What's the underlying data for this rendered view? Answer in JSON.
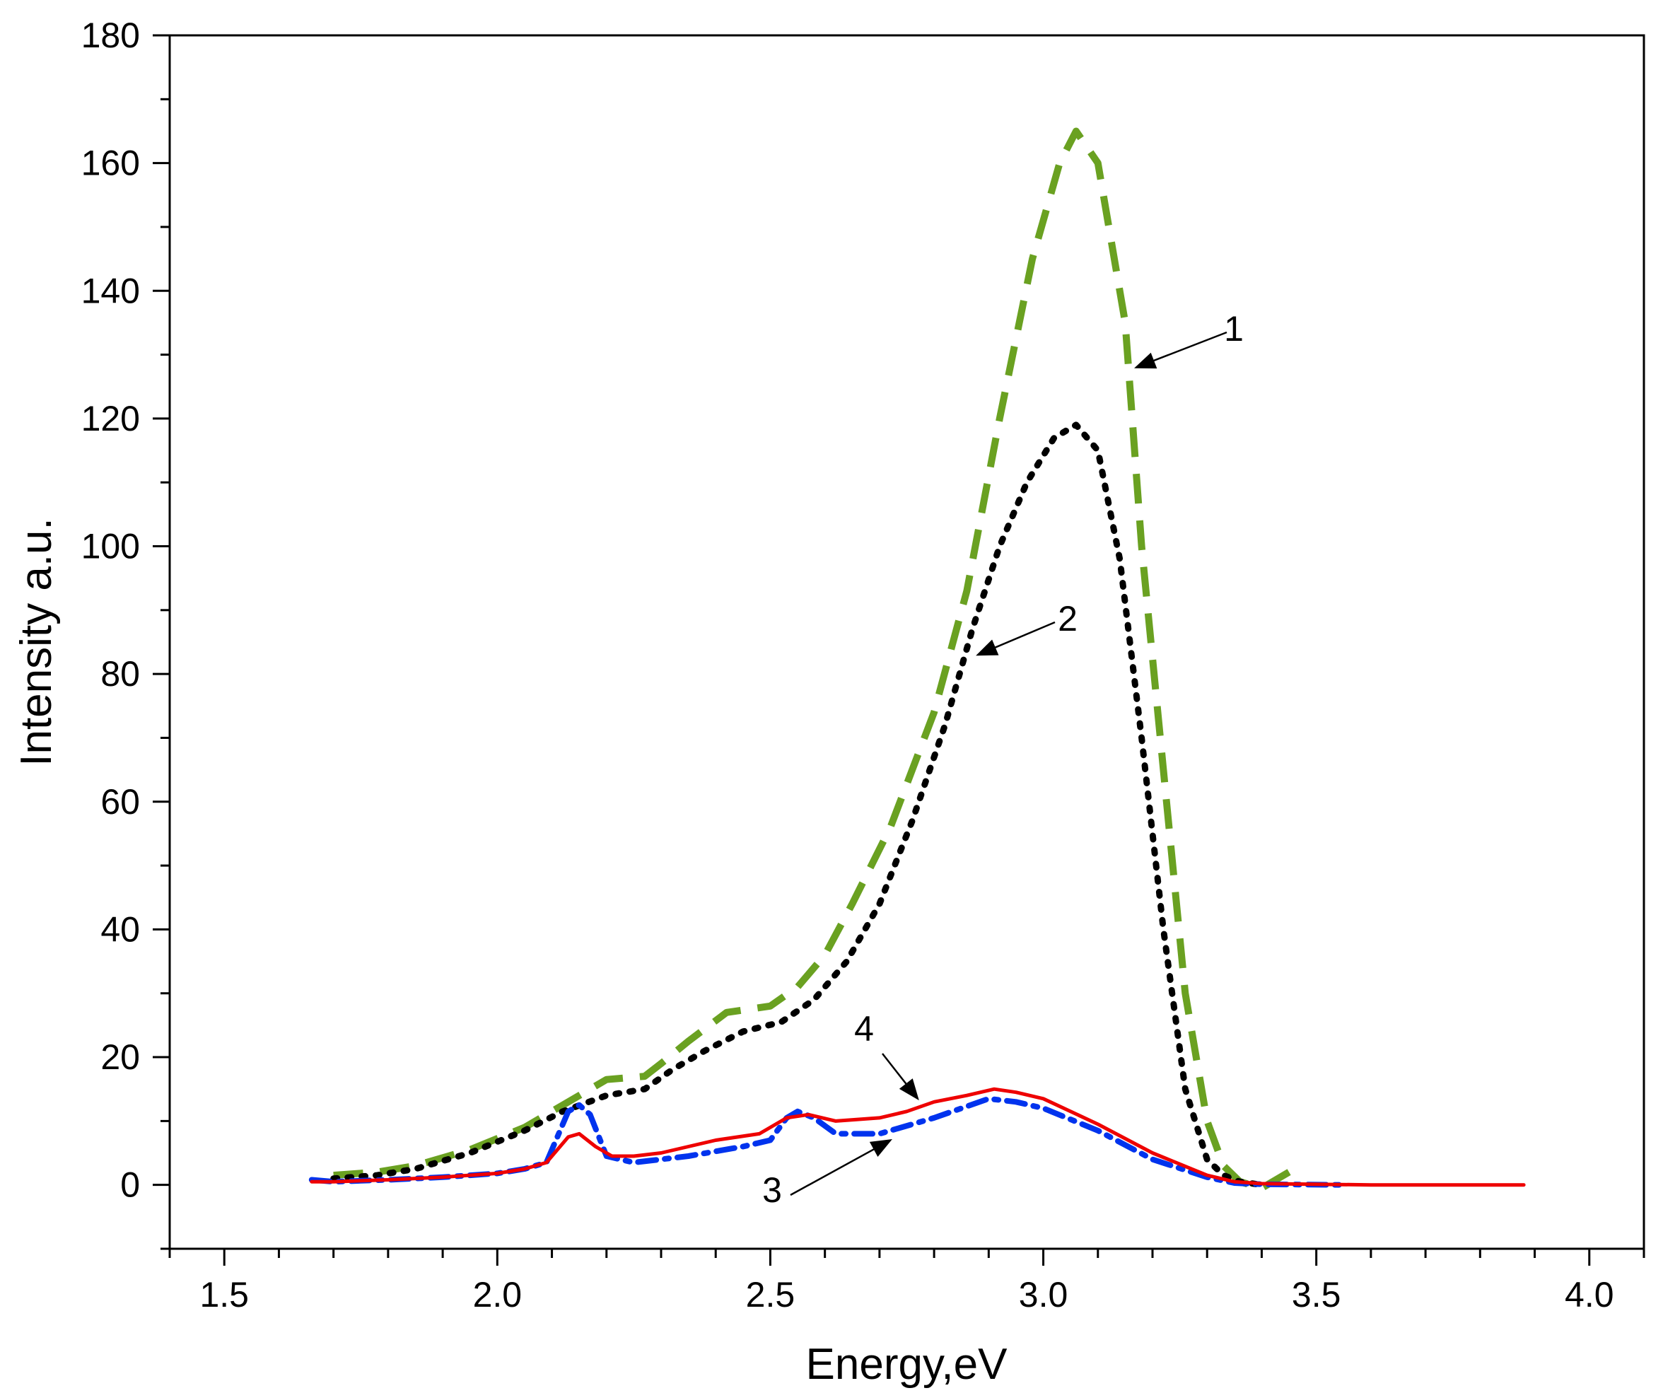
{
  "chart_data": {
    "type": "line",
    "title": "",
    "xlabel": "Energy,eV",
    "ylabel": "Intensity a.u.",
    "xlim": [
      1.4,
      4.1
    ],
    "ylim": [
      -10,
      180
    ],
    "xticks": [
      1.5,
      2.0,
      2.5,
      3.0,
      3.5,
      4.0
    ],
    "xtick_labels": [
      "1.5",
      "2.0",
      "2.5",
      "3.0",
      "3.5",
      "4.0"
    ],
    "yticks": [
      0,
      20,
      40,
      60,
      80,
      100,
      120,
      140,
      160,
      180
    ],
    "ytick_labels": [
      "0",
      "20",
      "40",
      "60",
      "80",
      "100",
      "120",
      "140",
      "160",
      "180"
    ],
    "grid": false,
    "legend": "none",
    "series": [
      {
        "name": "1",
        "color": "#6aa121",
        "style": "dashed",
        "x": [
          1.7,
          1.78,
          1.85,
          1.95,
          2.05,
          2.12,
          2.2,
          2.27,
          2.3,
          2.35,
          2.42,
          2.5,
          2.55,
          2.6,
          2.65,
          2.72,
          2.8,
          2.86,
          2.92,
          2.98,
          3.03,
          3.06,
          3.1,
          3.15,
          3.18,
          3.22,
          3.26,
          3.3,
          3.33,
          3.36,
          3.4,
          3.42,
          3.45
        ],
        "values": [
          1.5,
          2.0,
          3.0,
          5.5,
          9.0,
          12.5,
          16.5,
          17.0,
          19.0,
          22.5,
          27.0,
          28.0,
          31.0,
          36.0,
          44.0,
          56.0,
          74.0,
          93.0,
          120.0,
          145.0,
          160.0,
          165.0,
          160.0,
          135.0,
          100.0,
          65.0,
          30.0,
          10.0,
          3.0,
          0.5,
          -0.5,
          0.5,
          2.0
        ]
      },
      {
        "name": "2",
        "color": "#000000",
        "style": "dotted",
        "x": [
          1.7,
          1.78,
          1.85,
          1.95,
          2.05,
          2.12,
          2.2,
          2.27,
          2.32,
          2.38,
          2.45,
          2.52,
          2.58,
          2.64,
          2.7,
          2.76,
          2.82,
          2.87,
          2.92,
          2.97,
          3.02,
          3.06,
          3.1,
          3.14,
          3.18,
          3.22,
          3.26,
          3.3,
          3.33,
          3.36,
          3.4
        ],
        "values": [
          1.0,
          1.5,
          2.5,
          5.0,
          8.5,
          11.5,
          14.0,
          15.0,
          18.0,
          21.0,
          24.0,
          25.5,
          29.0,
          35.0,
          44.0,
          57.0,
          72.0,
          87.0,
          100.0,
          110.0,
          117.0,
          119.0,
          115.0,
          98.0,
          70.0,
          40.0,
          15.0,
          4.0,
          1.5,
          0.5,
          0.0
        ]
      },
      {
        "name": "3",
        "color": "#0033ee",
        "style": "dashdot",
        "x": [
          1.66,
          1.7,
          1.8,
          1.9,
          2.0,
          2.05,
          2.09,
          2.13,
          2.15,
          2.17,
          2.2,
          2.25,
          2.35,
          2.45,
          2.5,
          2.53,
          2.55,
          2.58,
          2.62,
          2.7,
          2.8,
          2.9,
          2.95,
          3.0,
          3.1,
          3.2,
          3.3,
          3.35,
          3.4,
          3.55
        ],
        "values": [
          0.8,
          0.5,
          0.8,
          1.2,
          1.8,
          2.5,
          3.5,
          11.5,
          12.5,
          11.0,
          4.5,
          3.5,
          4.5,
          6.0,
          7.0,
          10.5,
          11.5,
          10.5,
          8.0,
          8.0,
          10.5,
          13.5,
          13.0,
          12.0,
          8.5,
          4.0,
          1.2,
          0.3,
          0.1,
          0.0
        ]
      },
      {
        "name": "4",
        "color": "#ee0000",
        "style": "solid",
        "x": [
          1.66,
          1.7,
          1.8,
          1.9,
          2.0,
          2.05,
          2.09,
          2.13,
          2.15,
          2.18,
          2.21,
          2.25,
          2.3,
          2.4,
          2.48,
          2.53,
          2.57,
          2.62,
          2.7,
          2.75,
          2.8,
          2.86,
          2.91,
          2.95,
          3.0,
          3.1,
          3.2,
          3.3,
          3.35,
          3.4,
          3.6,
          3.88
        ],
        "values": [
          0.5,
          0.5,
          0.8,
          1.2,
          1.8,
          2.5,
          3.5,
          7.5,
          8.0,
          6.0,
          4.5,
          4.5,
          5.0,
          7.0,
          8.0,
          10.5,
          11.0,
          10.0,
          10.5,
          11.5,
          13.0,
          14.0,
          15.0,
          14.5,
          13.5,
          9.5,
          5.0,
          1.5,
          0.5,
          0.2,
          0.0,
          0.0
        ]
      }
    ],
    "annotations": [
      {
        "label": "1",
        "target": [
          3.17,
          128
        ]
      },
      {
        "label": "2",
        "target": [
          2.88,
          83
        ]
      },
      {
        "label": "3",
        "target": [
          2.72,
          7
        ]
      },
      {
        "label": "4",
        "target": [
          2.77,
          13.5
        ]
      }
    ]
  }
}
